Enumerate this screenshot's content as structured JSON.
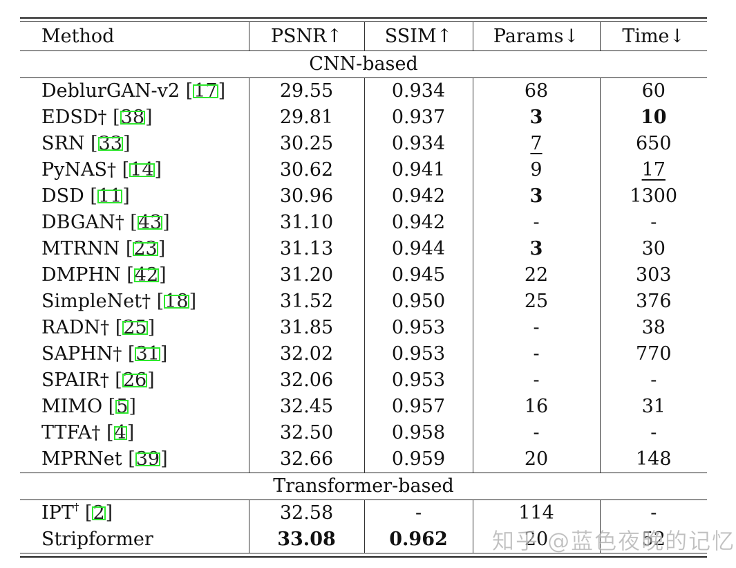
{
  "table": {
    "headers": {
      "method": "Method",
      "psnr": "PSNR↑",
      "ssim": "SSIM↑",
      "params": "Params↓",
      "time": "Time↓"
    },
    "groups": [
      {
        "label": "CNN-based",
        "rows": [
          {
            "name": "DeblurGAN-v2",
            "dagger": "",
            "cite": "17",
            "psnr": "29.55",
            "ssim": "0.934",
            "params": "68",
            "time": "60"
          },
          {
            "name": "EDSD",
            "dagger": "†",
            "cite": "38",
            "psnr": "29.81",
            "ssim": "0.937",
            "params": "3",
            "time": "10"
          },
          {
            "name": "SRN",
            "dagger": "",
            "cite": "33",
            "psnr": "30.25",
            "ssim": "0.934",
            "params": "7",
            "time": "650"
          },
          {
            "name": "PyNAS",
            "dagger": "†",
            "cite": "14",
            "psnr": "30.62",
            "ssim": "0.941",
            "params": "9",
            "time": "17"
          },
          {
            "name": "DSD",
            "dagger": "",
            "cite": "11",
            "psnr": "30.96",
            "ssim": "0.942",
            "params": "3",
            "time": "1300"
          },
          {
            "name": "DBGAN",
            "dagger": "†",
            "cite": "43",
            "psnr": "31.10",
            "ssim": "0.942",
            "params": "-",
            "time": "-"
          },
          {
            "name": "MTRNN",
            "dagger": "",
            "cite": "23",
            "psnr": "31.13",
            "ssim": "0.944",
            "params": "3",
            "time": "30"
          },
          {
            "name": "DMPHN",
            "dagger": "",
            "cite": "42",
            "psnr": "31.20",
            "ssim": "0.945",
            "params": "22",
            "time": "303"
          },
          {
            "name": "SimpleNet",
            "dagger": "†",
            "cite": "18",
            "psnr": "31.52",
            "ssim": "0.950",
            "params": "25",
            "time": "376"
          },
          {
            "name": "RADN",
            "dagger": "†",
            "cite": "25",
            "psnr": "31.85",
            "ssim": "0.953",
            "params": "-",
            "time": "38"
          },
          {
            "name": "SAPHN",
            "dagger": "†",
            "cite": "31",
            "psnr": "32.02",
            "ssim": "0.953",
            "params": "-",
            "time": "770"
          },
          {
            "name": "SPAIR",
            "dagger": "†",
            "cite": "26",
            "psnr": "32.06",
            "ssim": "0.953",
            "params": "-",
            "time": "-"
          },
          {
            "name": "MIMO",
            "dagger": "",
            "cite": "5",
            "psnr": "32.45",
            "ssim": "0.957",
            "params": "16",
            "time": "31"
          },
          {
            "name": "TTFA",
            "dagger": "†",
            "cite": "4",
            "psnr": "32.50",
            "ssim": "0.958",
            "params": "-",
            "time": "-"
          },
          {
            "name": "MPRNet",
            "dagger": "",
            "cite": "39",
            "psnr": "32.66",
            "ssim": "0.959",
            "params": "20",
            "time": "148"
          }
        ]
      },
      {
        "label": "Transformer-based",
        "rows": [
          {
            "name": "IPT",
            "dagger_sup": "†",
            "cite": "2",
            "psnr": "32.58",
            "ssim": "-",
            "params": "114",
            "time": "-"
          },
          {
            "name": "Stripformer",
            "cite": "",
            "psnr": "33.08",
            "ssim": "0.962",
            "params": "20",
            "time": "52"
          }
        ]
      }
    ],
    "emphasis": {
      "bold_best": [
        "EDSD.params",
        "EDSD.time",
        "DSD.params",
        "MTRNN.params",
        "Stripformer.psnr",
        "Stripformer.ssim"
      ],
      "underline_second": [
        "SRN.params",
        "PyNAS.time"
      ]
    },
    "cite_box_color": "#2ee82e"
  },
  "watermark": "知乎 @蓝色夜晚的记忆"
}
